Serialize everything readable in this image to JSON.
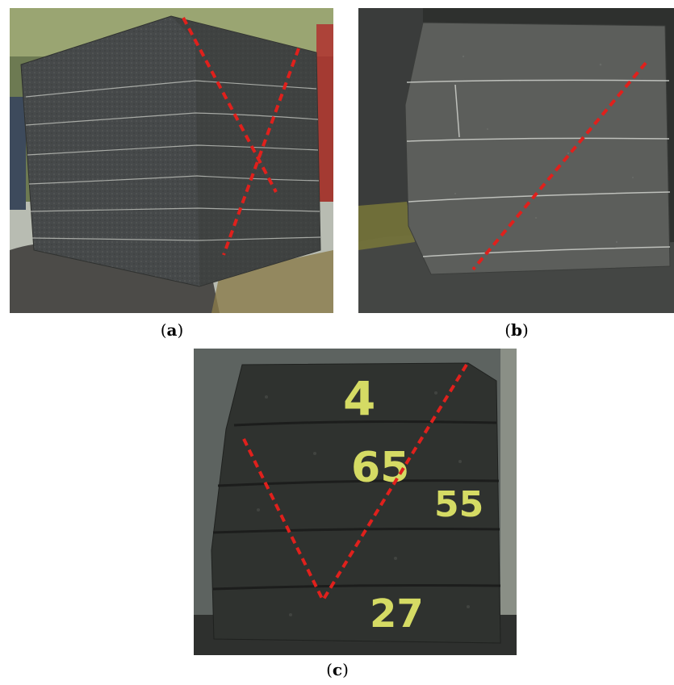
{
  "figure": {
    "panels": [
      {
        "id": "a",
        "caption_open": "(",
        "caption_letter": "a",
        "caption_close": ")"
      },
      {
        "id": "b",
        "caption_open": "(",
        "caption_letter": "b",
        "caption_close": ")"
      },
      {
        "id": "c",
        "caption_open": "(",
        "caption_letter": "c",
        "caption_close": ")",
        "markings": [
          "4",
          "65",
          "55",
          "27"
        ]
      }
    ],
    "colors": {
      "crack_line": "#e0201c",
      "sample_dark": "#3f423d",
      "sample_gray": "#5b5d5a",
      "chalk_yellow": "#e8ee6a",
      "mortar_line": "#c9cbc6"
    }
  }
}
